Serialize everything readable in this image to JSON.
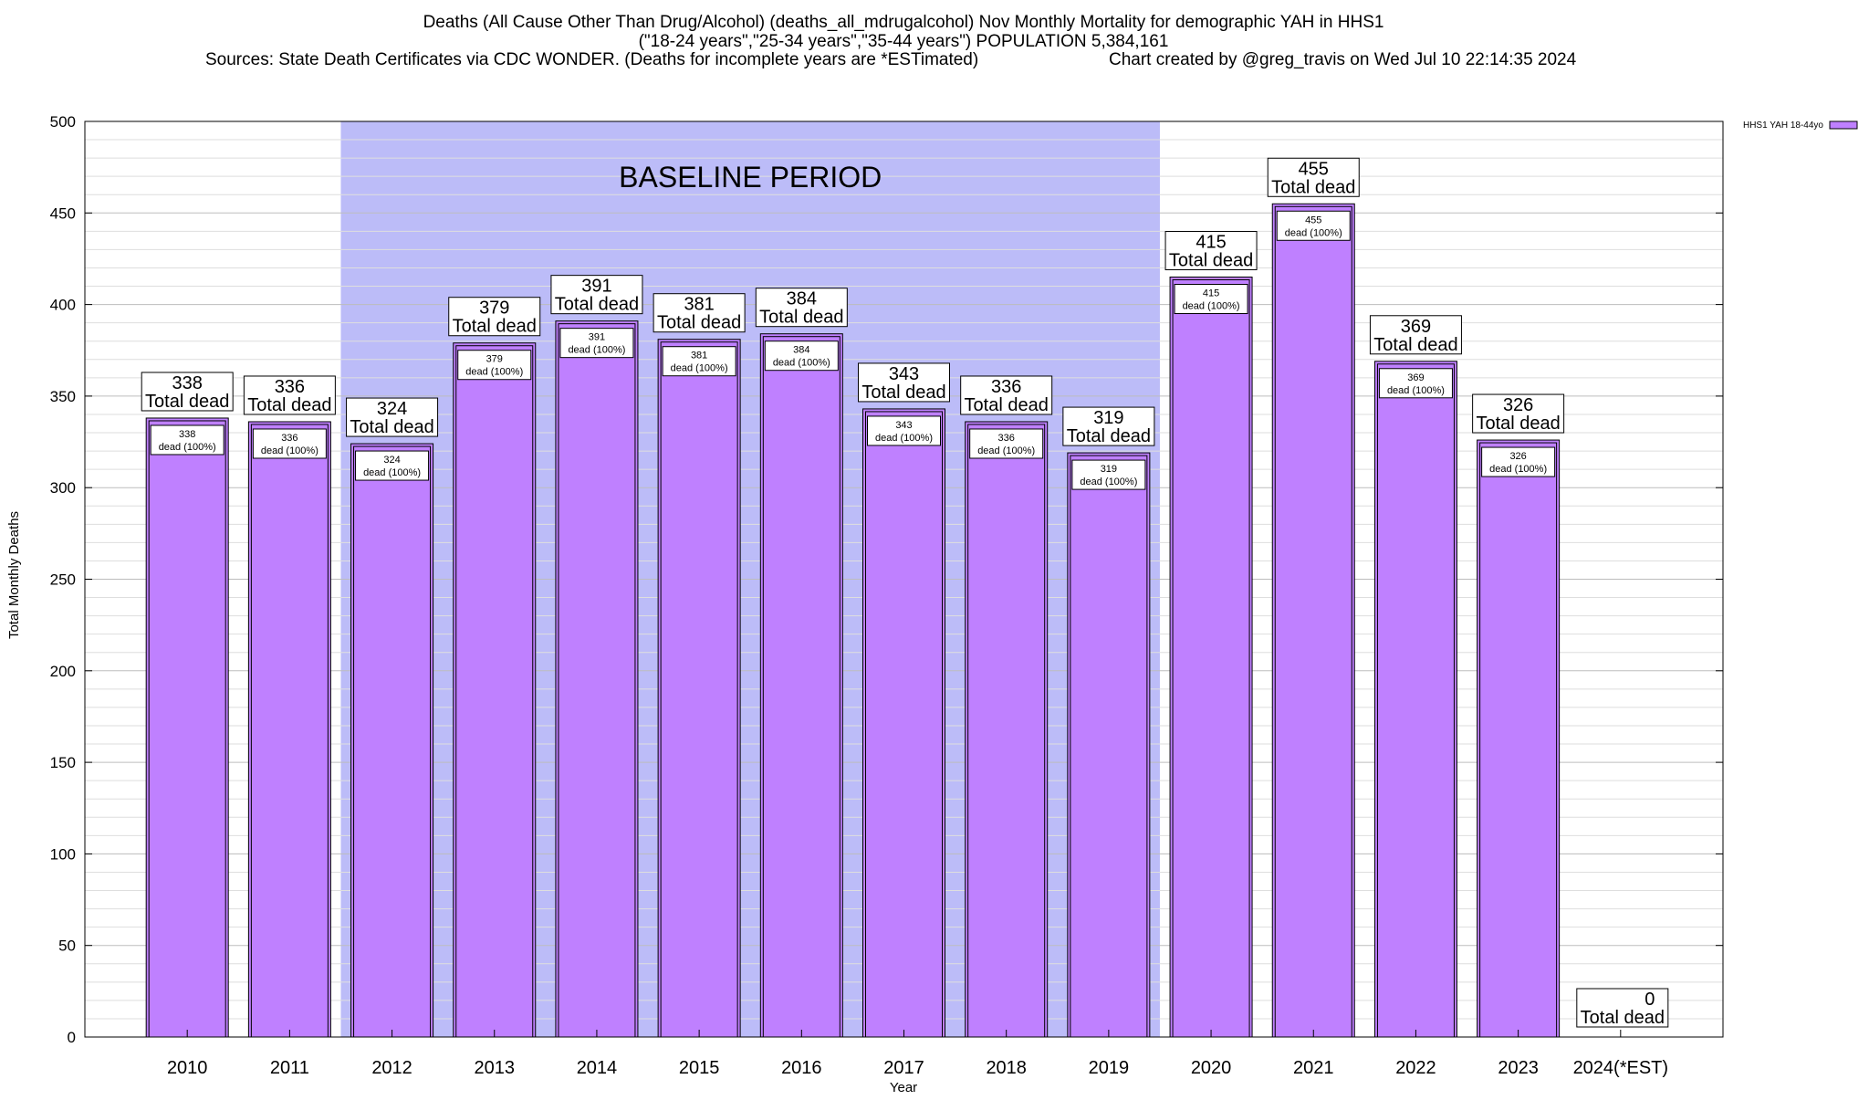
{
  "header": {
    "line1": "Deaths (All Cause Other Than Drug/Alcohol) (deaths_all_mdrugalcohol) Nov Monthly Mortality for demographic YAH in HHS1",
    "line2": "(\"18-24 years\",\"25-34 years\",\"35-44 years\") POPULATION 5,384,161",
    "line3_left": "Sources: State Death Certificates via CDC WONDER. (Deaths for incomplete years are *ESTimated)",
    "line3_right": "Chart created by @greg_travis on Wed Jul 10 22:14:35 2024"
  },
  "chart_data": {
    "type": "bar",
    "title": "Deaths (All Cause Other Than Drug/Alcohol) (deaths_all_mdrugalcohol) Nov Monthly Mortality for demographic YAH in HHS1",
    "xlabel": "Year",
    "ylabel": "Total Monthly Deaths",
    "ylim": [
      0,
      500
    ],
    "yticks": [
      0,
      50,
      100,
      150,
      200,
      250,
      300,
      350,
      400,
      450,
      500
    ],
    "grid": true,
    "legend_position": "top-right",
    "categories": [
      "2010",
      "2011",
      "2012",
      "2013",
      "2014",
      "2015",
      "2016",
      "2017",
      "2018",
      "2019",
      "2020",
      "2021",
      "2022",
      "2023",
      "2024(*EST)"
    ],
    "series": [
      {
        "name": "HHS1 YAH 18-44yo",
        "color": "#bf80ff",
        "values": [
          338,
          336,
          324,
          379,
          391,
          381,
          384,
          343,
          336,
          319,
          415,
          455,
          369,
          326,
          0
        ]
      }
    ],
    "top_label_suffix": "Total dead",
    "inner_label_suffix": "dead (100%)",
    "baseline_period": {
      "label": "BASELINE PERIOD",
      "from": "2012",
      "to": "2019",
      "color": "#bcbcf8"
    }
  }
}
